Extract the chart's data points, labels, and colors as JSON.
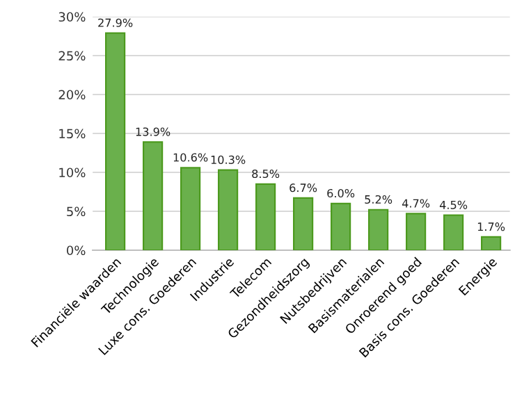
{
  "chart_data": {
    "type": "bar",
    "categories": [
      "Financiële waarden",
      "Technologie",
      "Luxe cons. Goederen",
      "Industrie",
      "Telecom",
      "Gezondheidszorg",
      "Nutsbedrijven",
      "Basismaterialen",
      "Onroerend goed",
      "Basis cons. Goederen",
      "Energie"
    ],
    "values": [
      27.9,
      13.9,
      10.6,
      10.3,
      8.5,
      6.7,
      6.0,
      5.2,
      4.7,
      4.5,
      1.7
    ],
    "value_labels": [
      "27.9%",
      "13.9%",
      "10.6%",
      "10.3%",
      "8.5%",
      "6.7%",
      "6.0%",
      "5.2%",
      "4.7%",
      "4.5%",
      "1.7%"
    ],
    "color": "#6ab04c",
    "ylim": [
      0,
      30
    ],
    "yticks": [
      {
        "value": 0,
        "label": "0%"
      },
      {
        "value": 5,
        "label": "5%"
      },
      {
        "value": 10,
        "label": "10%"
      },
      {
        "value": 15,
        "label": "15%"
      },
      {
        "value": 20,
        "label": "20%"
      },
      {
        "value": 25,
        "label": "25%"
      },
      {
        "value": 30,
        "label": "30%"
      }
    ],
    "grid": "y",
    "legend": false
  }
}
